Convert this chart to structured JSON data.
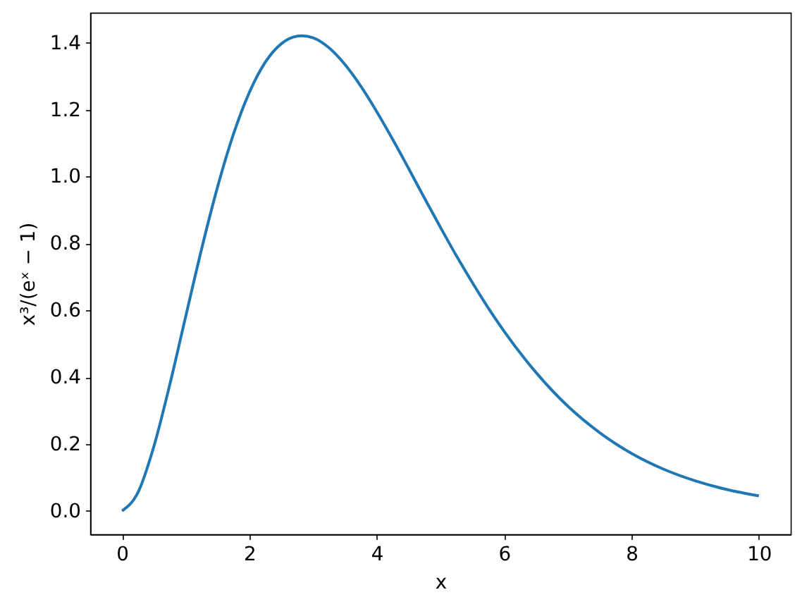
{
  "chart_data": {
    "type": "line",
    "xlabel": "x",
    "ylabel": "x³/(eˣ − 1)",
    "x": [
      0,
      0.25,
      0.5,
      0.75,
      1,
      1.25,
      1.5,
      1.75,
      2,
      2.25,
      2.5,
      2.75,
      2.82,
      3,
      3.25,
      3.5,
      3.75,
      4,
      4.25,
      4.5,
      4.75,
      5,
      5.25,
      5.5,
      5.75,
      6,
      6.5,
      7,
      7.5,
      8,
      8.5,
      9,
      9.5,
      10
    ],
    "series": [
      {
        "color": "#1f77b4",
        "values": [
          0,
          0.055,
          0.193,
          0.378,
          0.582,
          0.784,
          0.969,
          1.127,
          1.252,
          1.342,
          1.397,
          1.42,
          1.421,
          1.415,
          1.385,
          1.335,
          1.27,
          1.194,
          1.111,
          1.024,
          0.935,
          0.848,
          0.763,
          0.683,
          0.607,
          0.537,
          0.414,
          0.313,
          0.234,
          0.172,
          0.125,
          0.09,
          0.064,
          0.045
        ]
      }
    ],
    "xlim": [
      -0.5,
      10.5
    ],
    "ylim": [
      -0.07,
      1.49
    ],
    "xticks": [
      0,
      2,
      4,
      6,
      8,
      10
    ],
    "yticks": [
      {
        "value": 0,
        "label": "0.0"
      },
      0.2,
      0.4,
      0.6,
      0.8,
      {
        "value": 1,
        "label": "1.0"
      },
      1.2,
      1.4
    ],
    "grid": false
  }
}
